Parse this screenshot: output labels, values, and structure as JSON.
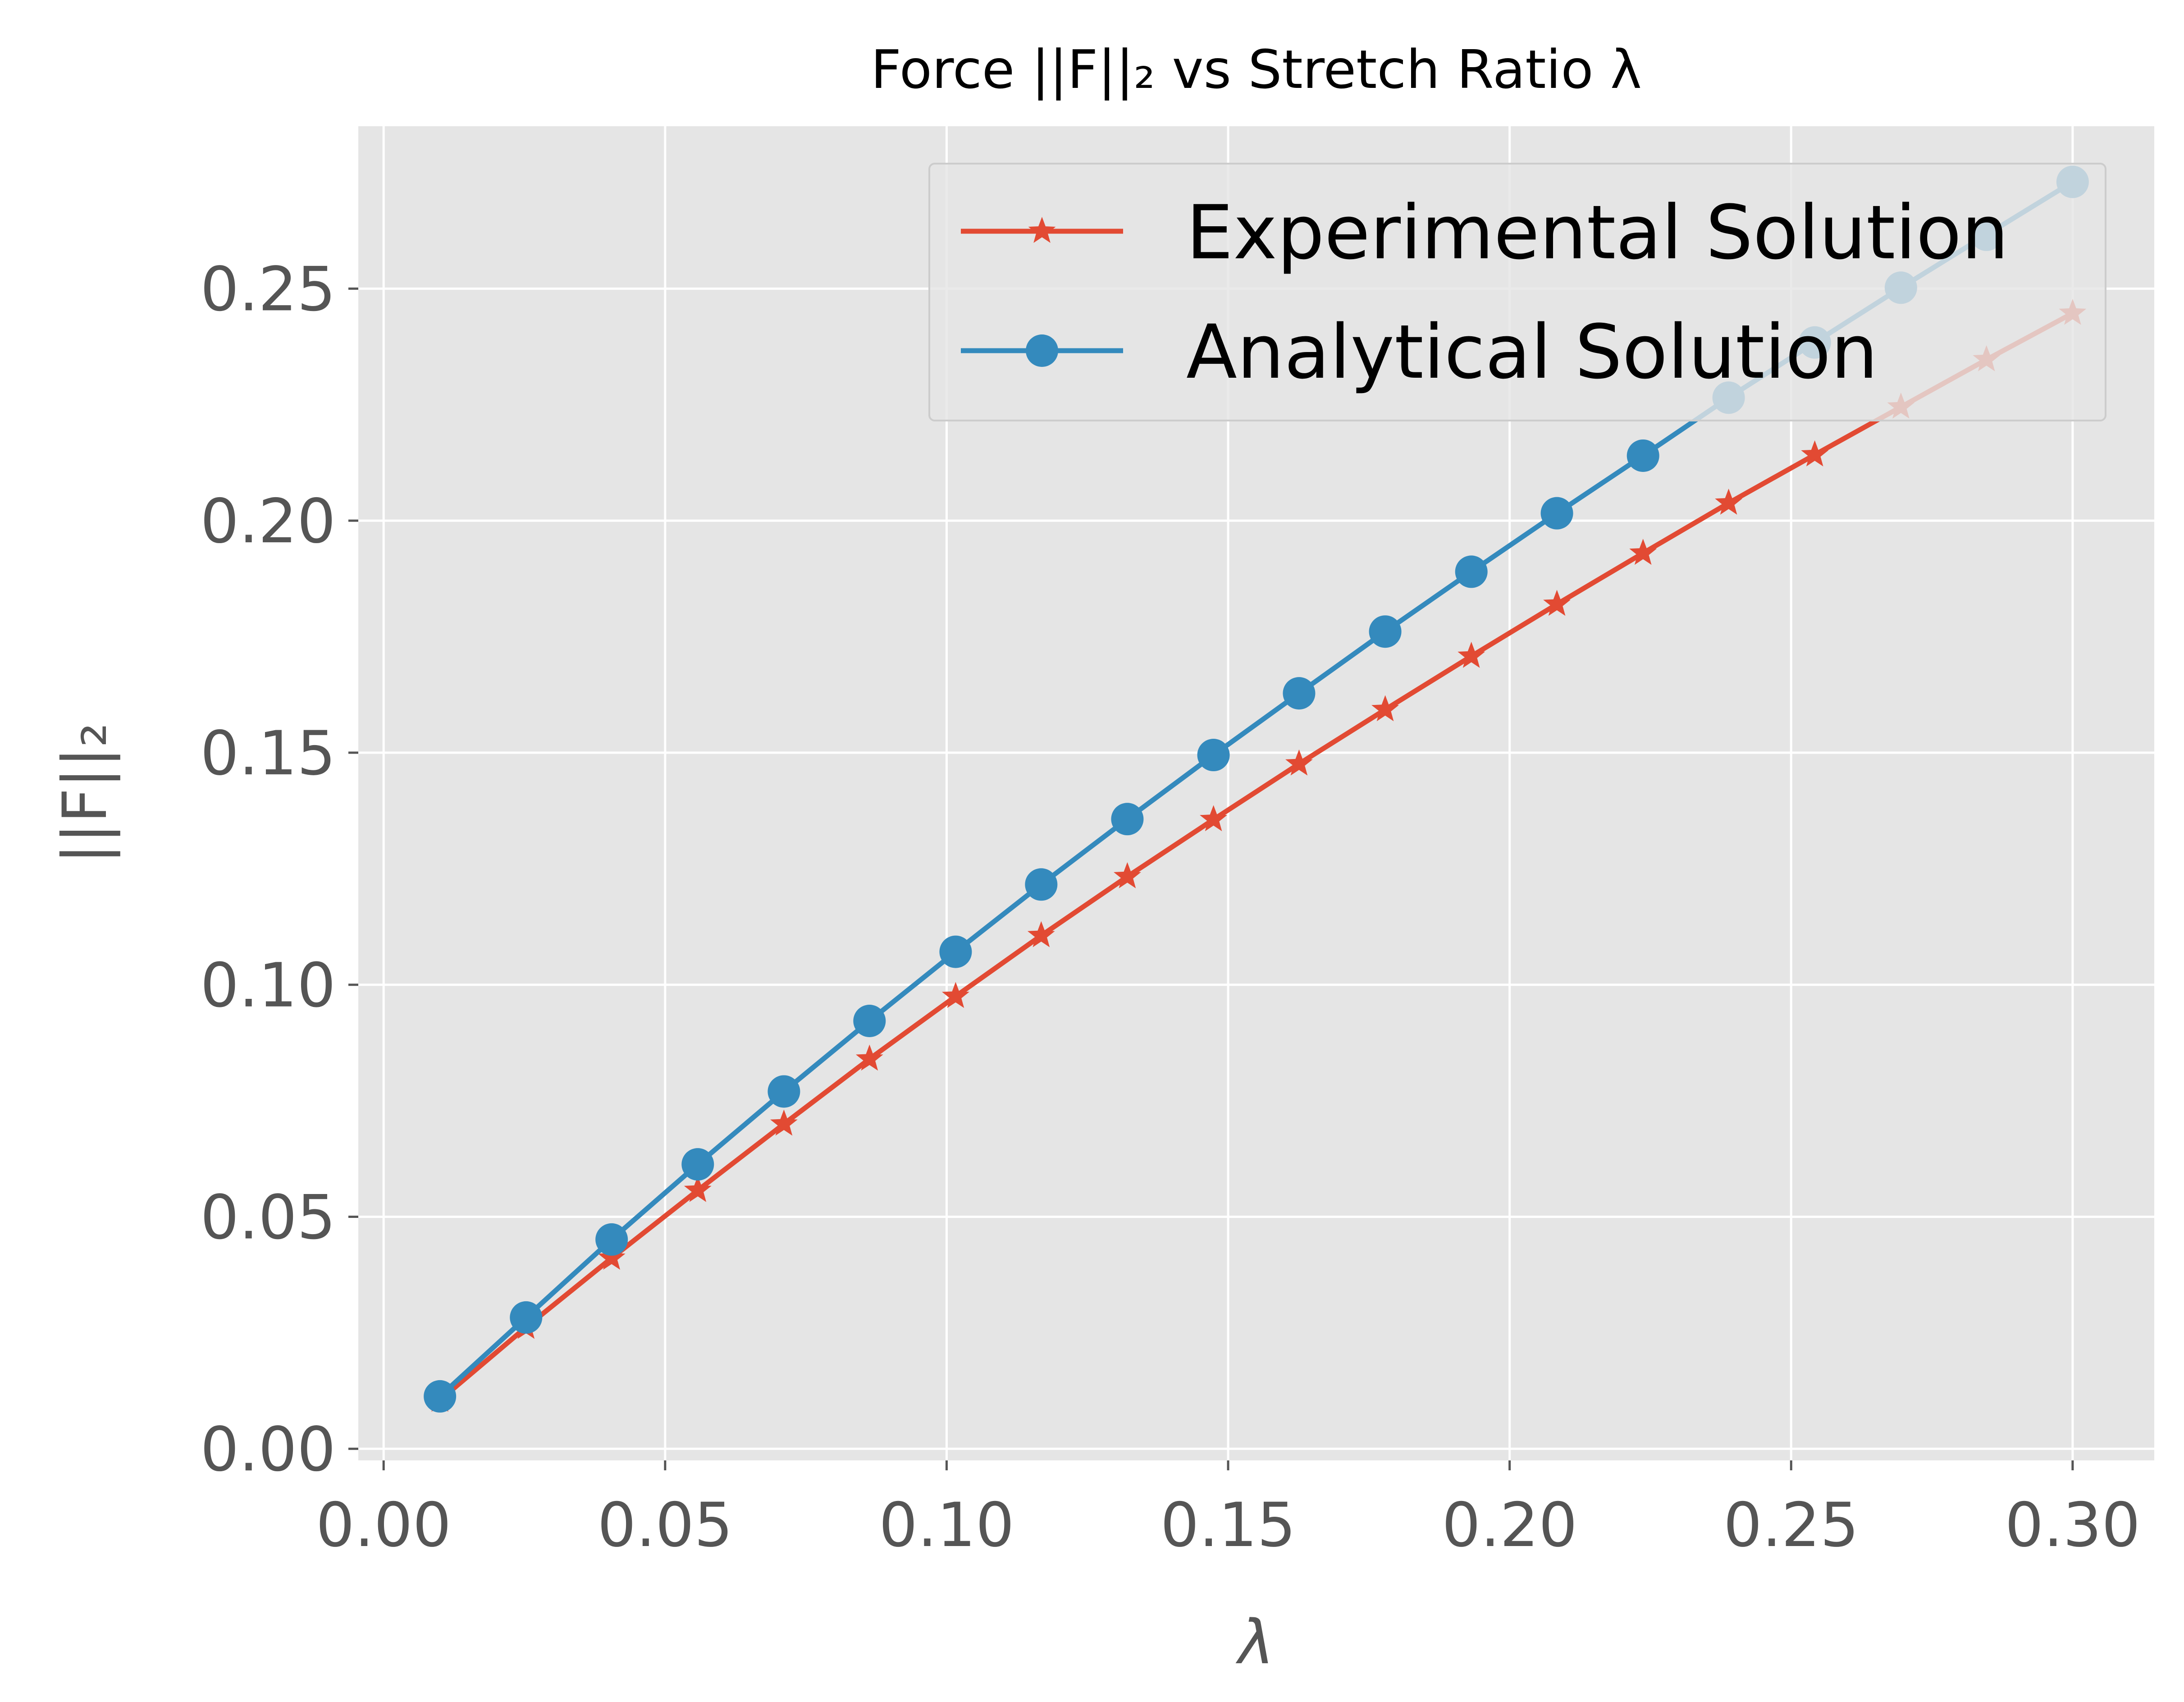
{
  "chart_data": {
    "type": "line",
    "title": "Force ||F||₂ vs Stretch Ratio λ",
    "xlabel": "λ",
    "ylabel": "||F||₂",
    "xlim": [
      -0.0045,
      0.3145
    ],
    "ylim": [
      -0.0025,
      0.285
    ],
    "xticks": [
      0.0,
      0.05,
      0.1,
      0.15,
      0.2,
      0.25,
      0.3
    ],
    "xtick_labels": [
      "0.00",
      "0.05",
      "0.10",
      "0.15",
      "0.20",
      "0.25",
      "0.30"
    ],
    "yticks": [
      0.0,
      0.05,
      0.1,
      0.15,
      0.2,
      0.25
    ],
    "ytick_labels": [
      "0.00",
      "0.05",
      "0.10",
      "0.15",
      "0.20",
      "0.25"
    ],
    "grid": true,
    "legend_position": "top-right",
    "x": [
      0.01,
      0.0253,
      0.0405,
      0.0558,
      0.0711,
      0.0863,
      0.1016,
      0.1168,
      0.1321,
      0.1474,
      0.1626,
      0.1779,
      0.1932,
      0.2084,
      0.2237,
      0.2389,
      0.2542,
      0.2695,
      0.2847,
      0.3
    ],
    "series": [
      {
        "name": "Experimental Solution",
        "color": "#E24A33",
        "marker": "star",
        "values": [
          0.0105,
          0.0262,
          0.0411,
          0.0557,
          0.07,
          0.084,
          0.0975,
          0.1106,
          0.1233,
          0.1356,
          0.1476,
          0.1593,
          0.1708,
          0.182,
          0.193,
          0.2038,
          0.2142,
          0.2245,
          0.2347,
          0.2447
        ]
      },
      {
        "name": "Analytical Solution",
        "color": "#348ABD",
        "marker": "circle",
        "values": [
          0.0113,
          0.0283,
          0.0451,
          0.0613,
          0.077,
          0.0922,
          0.1071,
          0.1216,
          0.1357,
          0.1495,
          0.1628,
          0.1761,
          0.189,
          0.2016,
          0.214,
          0.2265,
          0.2384,
          0.2502,
          0.2616,
          0.273
        ]
      }
    ]
  }
}
